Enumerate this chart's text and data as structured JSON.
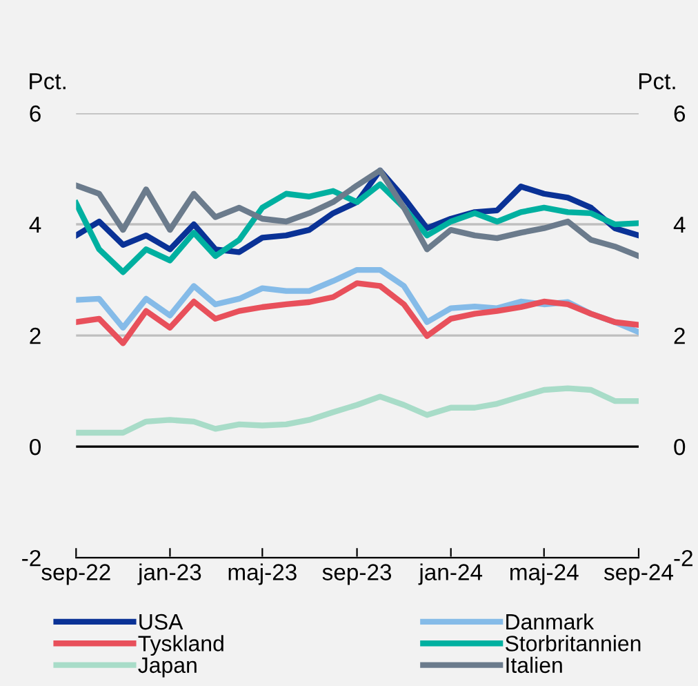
{
  "chart_data": {
    "type": "line",
    "ylabel": "Pct.",
    "y2label": "Pct.",
    "x": [
      "2022-09-01",
      "2022-10-01",
      "2022-11-01",
      "2022-12-01",
      "2023-01-01",
      "2023-02-01",
      "2023-03-01",
      "2023-04-01",
      "2023-05-01",
      "2023-06-01",
      "2023-07-01",
      "2023-08-01",
      "2023-09-01",
      "2023-10-01",
      "2023-11-01",
      "2023-12-01",
      "2024-01-01",
      "2024-02-01",
      "2024-03-01",
      "2024-04-01",
      "2024-05-01",
      "2024-06-01",
      "2024-07-01",
      "2024-08-01",
      "2024-09-01"
    ],
    "series": [
      {
        "name": "USA",
        "color": "#0a3296",
        "values": [
          3.8,
          4.05,
          3.63,
          3.8,
          3.55,
          4.0,
          3.55,
          3.5,
          3.76,
          3.8,
          3.9,
          4.2,
          4.4,
          4.97,
          4.48,
          3.93,
          4.1,
          4.22,
          4.25,
          4.68,
          4.55,
          4.48,
          4.3,
          3.93,
          3.8
        ]
      },
      {
        "name": "Danmark",
        "color": "#85bbe8",
        "values": [
          2.64,
          2.66,
          2.14,
          2.66,
          2.36,
          2.89,
          2.56,
          2.66,
          2.85,
          2.8,
          2.8,
          2.98,
          3.18,
          3.18,
          2.89,
          2.24,
          2.49,
          2.52,
          2.49,
          2.61,
          2.56,
          2.6,
          2.39,
          2.24,
          2.06
        ]
      },
      {
        "name": "Tyskland",
        "color": "#e8505b",
        "values": [
          2.24,
          2.3,
          1.86,
          2.44,
          2.14,
          2.61,
          2.3,
          2.44,
          2.51,
          2.56,
          2.6,
          2.69,
          2.94,
          2.89,
          2.56,
          1.99,
          2.3,
          2.39,
          2.44,
          2.51,
          2.61,
          2.56,
          2.39,
          2.24,
          2.19
        ]
      },
      {
        "name": "Storbritannien",
        "color": "#00b0a0",
        "values": [
          4.38,
          3.55,
          3.14,
          3.55,
          3.35,
          3.85,
          3.43,
          3.72,
          4.3,
          4.55,
          4.5,
          4.6,
          4.4,
          4.72,
          4.3,
          3.8,
          4.05,
          4.2,
          4.05,
          4.22,
          4.3,
          4.22,
          4.2,
          4.0,
          4.02
        ]
      },
      {
        "name": "Japan",
        "color": "#a8dcc8",
        "values": [
          0.25,
          0.25,
          0.25,
          0.45,
          0.48,
          0.45,
          0.32,
          0.4,
          0.38,
          0.4,
          0.48,
          0.62,
          0.75,
          0.9,
          0.75,
          0.57,
          0.7,
          0.7,
          0.77,
          0.9,
          1.02,
          1.05,
          1.02,
          0.82,
          0.82
        ]
      },
      {
        "name": "Italien",
        "color": "#6b7b8c",
        "values": [
          4.7,
          4.55,
          3.9,
          4.63,
          3.9,
          4.55,
          4.13,
          4.3,
          4.1,
          4.05,
          4.2,
          4.4,
          4.7,
          4.97,
          4.3,
          3.55,
          3.9,
          3.8,
          3.75,
          3.85,
          3.93,
          4.05,
          3.72,
          3.6,
          3.43
        ]
      }
    ],
    "xlim": [
      "2022-09-01",
      "2024-09-01"
    ],
    "xticks": [
      {
        "value": "2022-09-01",
        "label": "sep-22"
      },
      {
        "value": "2023-01-01",
        "label": "jan-23"
      },
      {
        "value": "2023-05-01",
        "label": "maj-23"
      },
      {
        "value": "2023-09-01",
        "label": "sep-23"
      },
      {
        "value": "2024-01-01",
        "label": "jan-24"
      },
      {
        "value": "2024-05-01",
        "label": "maj-24"
      },
      {
        "value": "2024-09-01",
        "label": "sep-24"
      }
    ],
    "ylim": [
      -2,
      6
    ],
    "yticks": [
      -2,
      0,
      2,
      4,
      6
    ],
    "y2lim": [
      -2,
      6
    ],
    "y2ticks": [
      -2,
      0,
      2,
      4,
      6
    ],
    "ref_lines": [
      {
        "axis": "y",
        "value": 0,
        "color": "#000000"
      }
    ],
    "grid": "y",
    "legend": "bottom",
    "line_style": "solid",
    "marker": "none"
  }
}
